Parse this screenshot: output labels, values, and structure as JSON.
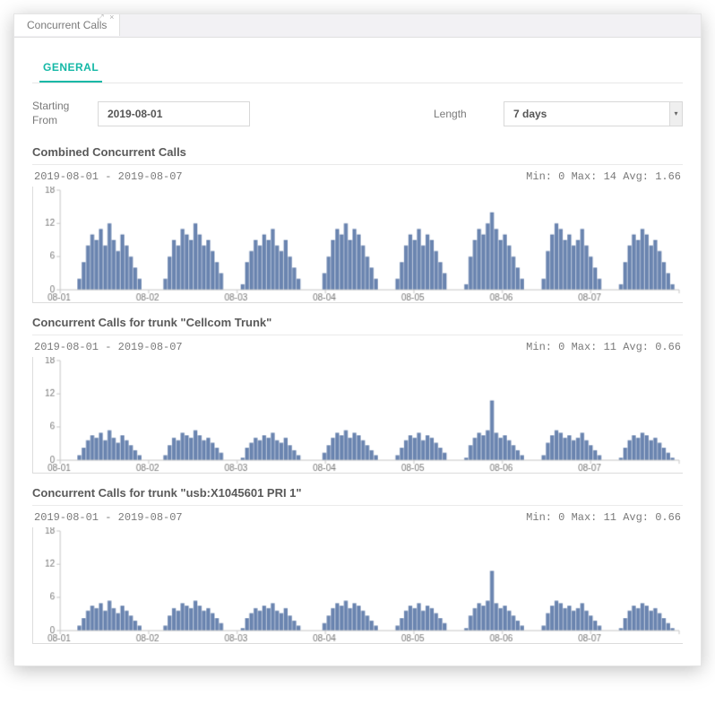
{
  "window": {
    "title": "Concurrent Calls"
  },
  "subtab": {
    "label": "GENERAL"
  },
  "filters": {
    "starting_label": "Starting From",
    "starting_value": "2019-08-01",
    "length_label": "Length",
    "length_value": "7 days"
  },
  "chart_style": {
    "bar_color": "#6b85b0",
    "axis_color": "#c8c8c8",
    "text_color": "#7a7a7a",
    "background": "#ffffff",
    "y_max": 18,
    "y_ticks": [
      0,
      6,
      12,
      18
    ],
    "x_labels": [
      "08-01",
      "08-02",
      "08-03",
      "08-04",
      "08-05",
      "08-06",
      "08-07",
      ""
    ],
    "font": "10px Arial"
  },
  "charts": [
    {
      "title": "Combined Concurrent Calls",
      "date_range": "2019-08-01 - 2019-08-07",
      "stats": "Min: 0  Max: 14  Avg: 1.66",
      "scale": 1.0,
      "series": [
        0,
        0,
        0,
        0,
        2,
        5,
        8,
        10,
        9,
        11,
        8,
        12,
        9,
        7,
        10,
        8,
        6,
        4,
        2,
        0,
        0,
        0,
        0,
        0,
        2,
        6,
        9,
        8,
        11,
        10,
        9,
        12,
        10,
        8,
        9,
        7,
        5,
        3,
        0,
        0,
        0,
        0,
        1,
        5,
        7,
        9,
        8,
        10,
        9,
        11,
        8,
        7,
        9,
        6,
        4,
        2,
        0,
        0,
        0,
        0,
        0,
        3,
        6,
        9,
        11,
        10,
        12,
        9,
        11,
        10,
        8,
        6,
        4,
        2,
        0,
        0,
        0,
        0,
        2,
        5,
        8,
        10,
        9,
        11,
        8,
        10,
        9,
        7,
        5,
        3,
        0,
        0,
        0,
        0,
        1,
        6,
        9,
        11,
        10,
        12,
        14,
        11,
        9,
        10,
        8,
        6,
        4,
        2,
        0,
        0,
        0,
        0,
        2,
        7,
        10,
        12,
        11,
        9,
        10,
        8,
        9,
        11,
        8,
        6,
        4,
        2,
        0,
        0,
        0,
        0,
        1,
        5,
        8,
        10,
        9,
        11,
        10,
        8,
        9,
        7,
        5,
        3,
        1,
        0
      ]
    },
    {
      "title": "Concurrent Calls for trunk \"Cellcom Trunk\"",
      "date_range": "2019-08-01 - 2019-08-07",
      "stats": "Min: 0  Max: 11  Avg: 0.66",
      "scale": 0.45,
      "series": [
        0,
        0,
        0,
        0,
        2,
        5,
        8,
        10,
        9,
        11,
        8,
        12,
        9,
        7,
        10,
        8,
        6,
        4,
        2,
        0,
        0,
        0,
        0,
        0,
        2,
        6,
        9,
        8,
        11,
        10,
        9,
        12,
        10,
        8,
        9,
        7,
        5,
        3,
        0,
        0,
        0,
        0,
        1,
        5,
        7,
        9,
        8,
        10,
        9,
        11,
        8,
        7,
        9,
        6,
        4,
        2,
        0,
        0,
        0,
        0,
        0,
        3,
        6,
        9,
        11,
        10,
        12,
        9,
        11,
        10,
        8,
        6,
        4,
        2,
        0,
        0,
        0,
        0,
        2,
        5,
        8,
        10,
        9,
        11,
        8,
        10,
        9,
        7,
        5,
        3,
        0,
        0,
        0,
        0,
        1,
        6,
        9,
        11,
        10,
        12,
        24,
        11,
        9,
        10,
        8,
        6,
        4,
        2,
        0,
        0,
        0,
        0,
        2,
        7,
        10,
        12,
        11,
        9,
        10,
        8,
        9,
        11,
        8,
        6,
        4,
        2,
        0,
        0,
        0,
        0,
        1,
        5,
        8,
        10,
        9,
        11,
        10,
        8,
        9,
        7,
        5,
        3,
        1,
        0
      ]
    },
    {
      "title": "Concurrent Calls for trunk \"usb:X1045601 PRI 1\"",
      "date_range": "2019-08-01 - 2019-08-07",
      "stats": "Min: 0  Max: 11  Avg: 0.66",
      "scale": 0.45,
      "series": [
        0,
        0,
        0,
        0,
        2,
        5,
        8,
        10,
        9,
        11,
        8,
        12,
        9,
        7,
        10,
        8,
        6,
        4,
        2,
        0,
        0,
        0,
        0,
        0,
        2,
        6,
        9,
        8,
        11,
        10,
        9,
        12,
        10,
        8,
        9,
        7,
        5,
        3,
        0,
        0,
        0,
        0,
        1,
        5,
        7,
        9,
        8,
        10,
        9,
        11,
        8,
        7,
        9,
        6,
        4,
        2,
        0,
        0,
        0,
        0,
        0,
        3,
        6,
        9,
        11,
        10,
        12,
        9,
        11,
        10,
        8,
        6,
        4,
        2,
        0,
        0,
        0,
        0,
        2,
        5,
        8,
        10,
        9,
        11,
        8,
        10,
        9,
        7,
        5,
        3,
        0,
        0,
        0,
        0,
        1,
        6,
        9,
        11,
        10,
        12,
        24,
        11,
        9,
        10,
        8,
        6,
        4,
        2,
        0,
        0,
        0,
        0,
        2,
        7,
        10,
        12,
        11,
        9,
        10,
        8,
        9,
        11,
        8,
        6,
        4,
        2,
        0,
        0,
        0,
        0,
        1,
        5,
        8,
        10,
        9,
        11,
        10,
        8,
        9,
        7,
        5,
        3,
        1,
        0
      ]
    }
  ]
}
